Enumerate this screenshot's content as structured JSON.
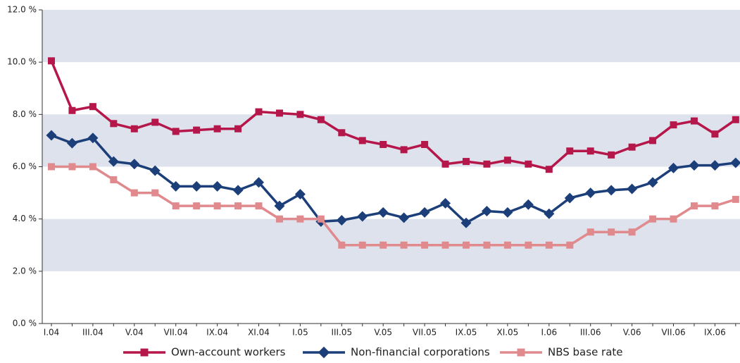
{
  "chart_data": {
    "type": "line",
    "categories": [
      "I.04",
      null,
      "III.04",
      null,
      "V.04",
      null,
      "VII.04",
      null,
      "IX.04",
      null,
      "XI.04",
      null,
      "I.05",
      null,
      "III.05",
      null,
      "V.05",
      null,
      "VII.05",
      null,
      "IX.05",
      null,
      "XI.05",
      null,
      "I.06",
      null,
      "III.06",
      null,
      "V.06",
      null,
      "VII.06",
      null,
      "IX.06",
      null
    ],
    "series": [
      {
        "name": "Own-account workers",
        "color": "#b5174a",
        "marker": "square",
        "values": [
          10.05,
          8.15,
          8.3,
          7.65,
          7.45,
          7.7,
          7.35,
          7.4,
          7.45,
          7.45,
          8.1,
          8.05,
          8.0,
          7.8,
          7.3,
          7.0,
          6.85,
          6.65,
          6.85,
          6.1,
          6.2,
          6.1,
          6.25,
          6.1,
          5.9,
          6.6,
          6.6,
          6.45,
          6.75,
          7.0,
          7.6,
          7.75,
          7.25,
          7.8
        ]
      },
      {
        "name": "Non-financial corporations",
        "color": "#1c3f7a",
        "marker": "diamond",
        "values": [
          7.2,
          6.9,
          7.1,
          6.2,
          6.1,
          5.85,
          5.25,
          5.25,
          5.25,
          5.1,
          5.4,
          4.5,
          4.95,
          3.9,
          3.95,
          4.1,
          4.25,
          4.05,
          4.25,
          4.6,
          3.85,
          4.3,
          4.25,
          4.55,
          4.2,
          4.8,
          5.0,
          5.1,
          5.15,
          5.4,
          5.95,
          6.05,
          6.05,
          6.15
        ]
      },
      {
        "name": "NBS base rate",
        "color": "#e08a8e",
        "marker": "square",
        "values": [
          6.0,
          6.0,
          6.0,
          5.5,
          5.0,
          5.0,
          4.5,
          4.5,
          4.5,
          4.5,
          4.5,
          4.0,
          4.0,
          4.0,
          3.0,
          3.0,
          3.0,
          3.0,
          3.0,
          3.0,
          3.0,
          3.0,
          3.0,
          3.0,
          3.0,
          3.0,
          3.5,
          3.5,
          3.5,
          4.0,
          4.0,
          4.5,
          4.5,
          4.75
        ]
      }
    ],
    "ylim": [
      0,
      12
    ],
    "yticks": [
      {
        "value": 0,
        "label": "0.0 %"
      },
      {
        "value": 2,
        "label": "2.0 %"
      },
      {
        "value": 4,
        "label": "4.0 %"
      },
      {
        "value": 6,
        "label": "6.0 %"
      },
      {
        "value": 8,
        "label": "8.0 %"
      },
      {
        "value": 10,
        "label": "10.0 %"
      },
      {
        "value": 12,
        "label": "12.0 %"
      }
    ],
    "grid": "bands",
    "band_color": "#dde2ec",
    "legend": "bottom"
  }
}
